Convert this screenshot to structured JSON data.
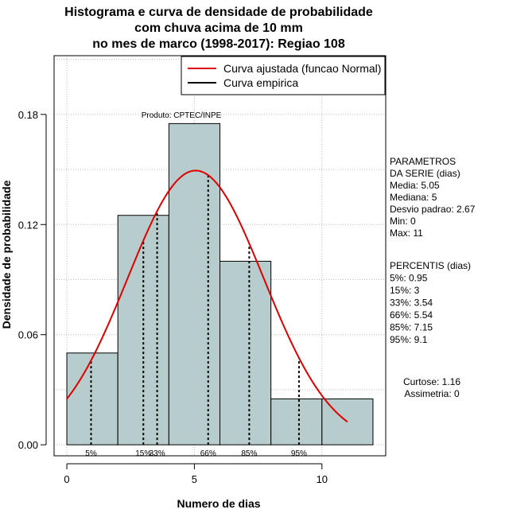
{
  "chart_data": {
    "type": "bar",
    "title_lines": [
      "Histograma e curva de densidade de probabilidade",
      "com chuva acima de 10 mm",
      "no mes de marco (1998-2017): Regiao 108"
    ],
    "xlabel": "Numero de dias",
    "ylabel": "Densidade de probabilidade",
    "xlim": [
      -0.5,
      12.5
    ],
    "ylim": [
      -0.006,
      0.212
    ],
    "x_ticks": [
      0,
      5,
      10
    ],
    "y_ticks": [
      0.0,
      0.06,
      0.12,
      0.18
    ],
    "y_tick_labels": [
      "0.00",
      "0.06",
      "0.12",
      "0.18"
    ],
    "grid": true,
    "bar_color": "#b7cccc",
    "bins": [
      {
        "x0": 0,
        "x1": 2,
        "density": 0.05
      },
      {
        "x0": 2,
        "x1": 4,
        "density": 0.125
      },
      {
        "x0": 4,
        "x1": 6,
        "density": 0.175
      },
      {
        "x0": 6,
        "x1": 8,
        "density": 0.1
      },
      {
        "x0": 8,
        "x1": 10,
        "density": 0.025
      },
      {
        "x0": 10,
        "x1": 12,
        "density": 0.025
      }
    ],
    "fitted_curve": {
      "name": "Curva ajustada (funcao Normal)",
      "color": "#e00000",
      "mean": 5.05,
      "sd": 2.67,
      "x_start": 0,
      "x_end": 11
    },
    "empirical_curve": {
      "name": "Curva empirica",
      "color": "#000000"
    },
    "legend_position": "top-right",
    "percentiles": [
      {
        "label": "5%",
        "x": 0.95
      },
      {
        "label": "15%",
        "x": 3
      },
      {
        "label": "33%",
        "x": 3.54
      },
      {
        "label": "66%",
        "x": 5.54
      },
      {
        "label": "85%",
        "x": 7.15
      },
      {
        "label": "95%",
        "x": 9.1
      }
    ],
    "annotation": "Produto: CPTEC/INPE",
    "parametros_lines": [
      "PARAMETROS",
      "DA SERIE (dias)",
      "   Media: 5.05",
      "   Mediana: 5",
      "   Desvio padrao: 2.67",
      "   Min: 0",
      "   Max: 11"
    ],
    "percentis_lines": [
      "PERCENTIS (dias)",
      "   5%: 0.95",
      "   15%: 3",
      "   33%: 3.54",
      "   66%: 5.54",
      "   85%: 7.15",
      "   95%: 9.1"
    ],
    "shape_lines": [
      "Curtose: 1.16",
      "Assimetria: 0"
    ]
  }
}
